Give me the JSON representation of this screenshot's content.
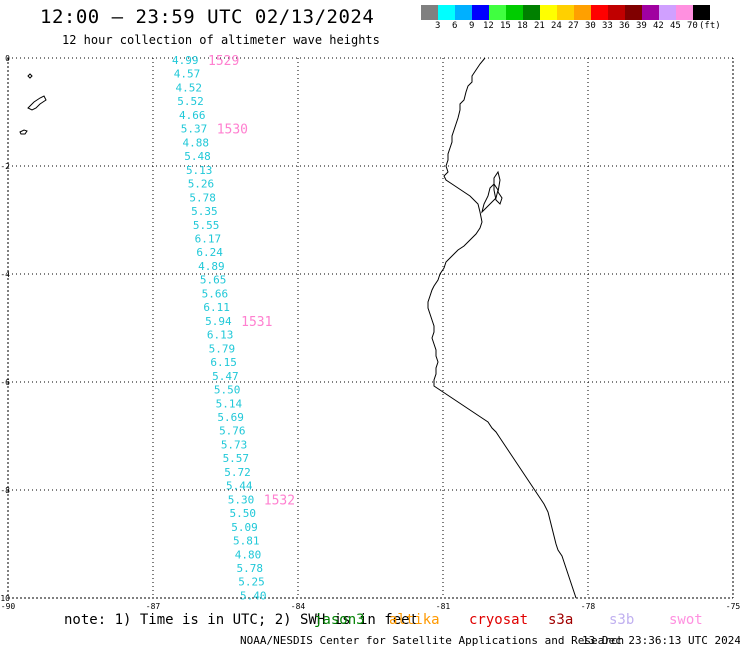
{
  "header": {
    "title": "12:00 – 23:59 UTC 02/13/2024",
    "subtitle": "12 hour collection of altimeter wave heights"
  },
  "colorbar": {
    "colors": [
      "#808080",
      "#00ffff",
      "#00b0ff",
      "#0000ff",
      "#40ff40",
      "#00cc00",
      "#008000",
      "#ffff00",
      "#ffd000",
      "#ffa000",
      "#ff0000",
      "#c00000",
      "#800000",
      "#a000a0",
      "#d0a0ff",
      "#ff90e0",
      "#000000"
    ],
    "labels": [
      "3",
      "6",
      "9",
      "12",
      "15",
      "18",
      "21",
      "24",
      "27",
      "30",
      "33",
      "36",
      "39",
      "42",
      "45",
      "70"
    ],
    "unit": "(ft)"
  },
  "map": {
    "lon_range": [
      -90,
      -75
    ],
    "lat_range": [
      -10,
      0
    ],
    "x_ticks": [
      "-90",
      "-87",
      "-84",
      "-81",
      "-78",
      "-75"
    ],
    "y_ticks": [
      "0",
      "-2",
      "-4",
      "-6",
      "-8",
      "-10"
    ],
    "grid": true,
    "wave_color": "#20c8d8",
    "pass_color": "#ff80d0",
    "wave_heights": [
      "4.99",
      "4.57",
      "4.52",
      "5.52",
      "4.66",
      "5.37",
      "4.88",
      "5.48",
      "5.13",
      "5.26",
      "5.78",
      "5.35",
      "5.55",
      "6.17",
      "6.24",
      "4.89",
      "5.65",
      "5.66",
      "6.11",
      "5.94",
      "6.13",
      "5.79",
      "6.15",
      "5.47",
      "5.50",
      "5.14",
      "5.69",
      "5.76",
      "5.73",
      "5.57",
      "5.72",
      "5.44",
      "5.30",
      "5.50",
      "5.09",
      "5.81",
      "4.80",
      "5.78",
      "5.25",
      "5.40"
    ],
    "pass_labels": [
      {
        "label": "1529",
        "index": 0
      },
      {
        "label": "1530",
        "index": 5
      },
      {
        "label": "1531",
        "index": 19
      },
      {
        "label": "1532",
        "index": 32
      }
    ]
  },
  "note": {
    "text": "note: 1) Time is in UTC; 2) SWH is in feet",
    "satellites": [
      {
        "name": "jason3",
        "color": "#008000"
      },
      {
        "name": "altika",
        "color": "#ff9900"
      },
      {
        "name": "cryosat",
        "color": "#e00000"
      },
      {
        "name": "s3a",
        "color": "#a00000"
      },
      {
        "name": "s3b",
        "color": "#c0b0f0"
      },
      {
        "name": "swot",
        "color": "#ff90e0"
      }
    ]
  },
  "footer": {
    "credit": "NOAA/NESDIS Center for Satellite Applications and Research",
    "generated": "13 Dec 23:36:13 UTC 2024"
  }
}
